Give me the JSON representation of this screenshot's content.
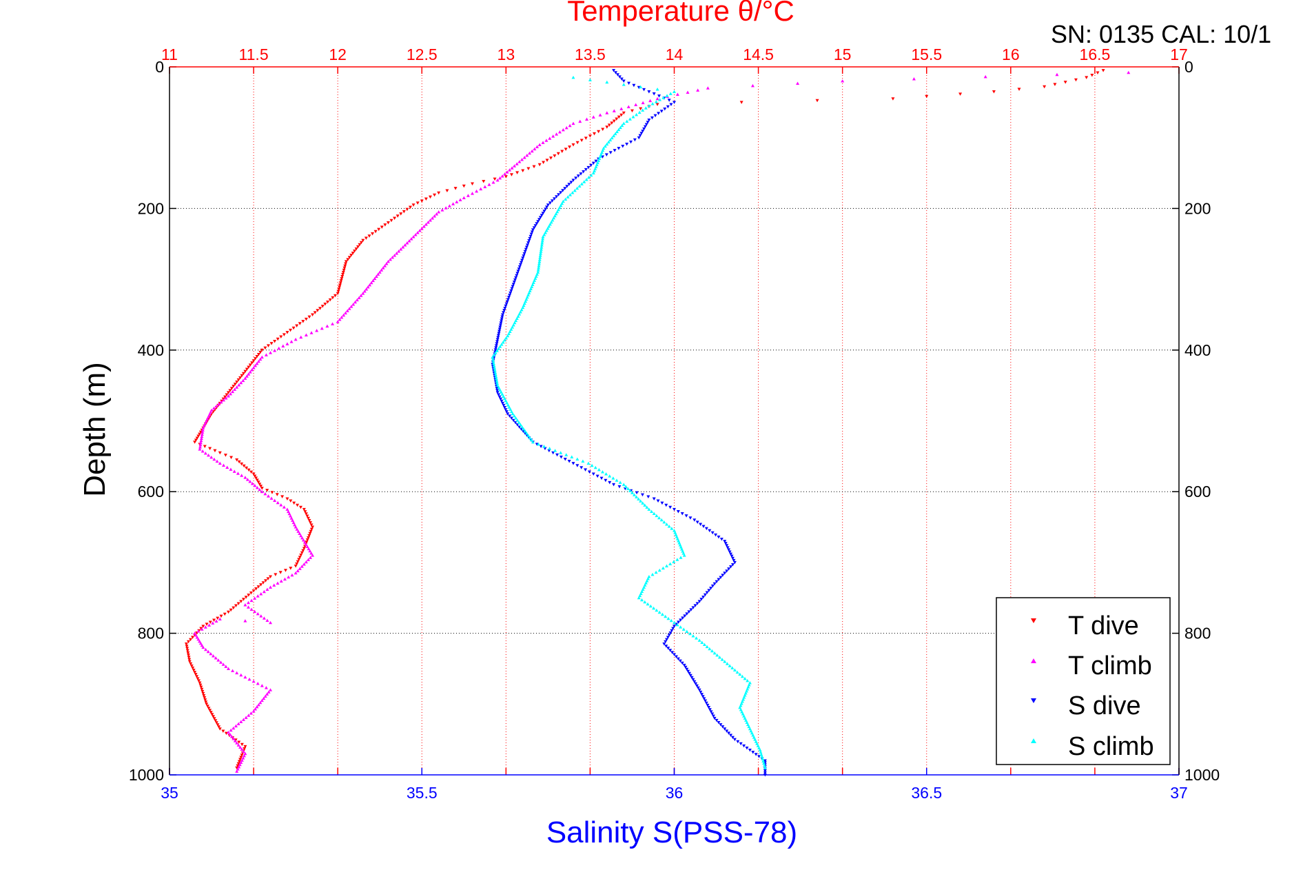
{
  "header": {
    "sn_label": "SN: 0135  CAL: 10/1"
  },
  "chart_data": {
    "type": "scatter",
    "title_top_axis": "Temperature θ/°C",
    "xlabel": "Salinity S(PSS-78)",
    "ylabel": "Depth (m)",
    "temperature_axis": {
      "range": [
        11,
        17
      ],
      "ticks": [
        "11",
        "11.5",
        "12",
        "12.5",
        "13",
        "13.5",
        "14",
        "14.5",
        "15",
        "15.5",
        "16",
        "16.5",
        "17"
      ],
      "color": "#ff0000"
    },
    "salinity_axis": {
      "range": [
        35,
        37
      ],
      "ticks": [
        "35",
        "35.5",
        "36",
        "36.5",
        "37"
      ],
      "color": "#0000ff"
    },
    "depth_axis": {
      "range": [
        0,
        1000
      ],
      "reversed": true,
      "ticks": [
        "0",
        "200",
        "400",
        "600",
        "800",
        "1000"
      ]
    },
    "grid": true,
    "legend_position": "bottom-right",
    "series": [
      {
        "name": "T dive",
        "axis": "temperature",
        "color": "#ff0000",
        "marker": "triangle-down",
        "points": [
          [
            16.55,
            5
          ],
          [
            16.45,
            15
          ],
          [
            16.2,
            28
          ],
          [
            15.9,
            35
          ],
          [
            15.3,
            45
          ],
          [
            14.4,
            50
          ],
          [
            13.9,
            53
          ],
          [
            13.7,
            65
          ],
          [
            13.6,
            85
          ],
          [
            13.4,
            110
          ],
          [
            13.2,
            138
          ],
          [
            13.0,
            155
          ],
          [
            12.8,
            165
          ],
          [
            12.6,
            178
          ],
          [
            12.45,
            195
          ],
          [
            12.3,
            220
          ],
          [
            12.15,
            245
          ],
          [
            12.05,
            275
          ],
          [
            12.0,
            320
          ],
          [
            11.85,
            350
          ],
          [
            11.7,
            375
          ],
          [
            11.55,
            400
          ],
          [
            11.45,
            430
          ],
          [
            11.35,
            460
          ],
          [
            11.25,
            490
          ],
          [
            11.2,
            510
          ],
          [
            11.15,
            530
          ],
          [
            11.3,
            545
          ],
          [
            11.4,
            555
          ],
          [
            11.5,
            575
          ],
          [
            11.55,
            595
          ],
          [
            11.7,
            610
          ],
          [
            11.8,
            625
          ],
          [
            11.85,
            650
          ],
          [
            11.8,
            680
          ],
          [
            11.75,
            705
          ],
          [
            11.6,
            720
          ],
          [
            11.5,
            740
          ],
          [
            11.35,
            770
          ],
          [
            11.2,
            790
          ],
          [
            11.1,
            815
          ],
          [
            11.12,
            840
          ],
          [
            11.18,
            870
          ],
          [
            11.22,
            900
          ],
          [
            11.3,
            935
          ],
          [
            11.45,
            960
          ],
          [
            11.4,
            990
          ]
        ]
      },
      {
        "name": "T climb",
        "axis": "temperature",
        "color": "#ff00ff",
        "marker": "triangle-up",
        "points": [
          [
            16.7,
            8
          ],
          [
            15.0,
            20
          ],
          [
            14.2,
            30
          ],
          [
            13.9,
            45
          ],
          [
            13.6,
            65
          ],
          [
            13.4,
            80
          ],
          [
            13.2,
            110
          ],
          [
            13.05,
            140
          ],
          [
            12.95,
            160
          ],
          [
            12.75,
            185
          ],
          [
            12.6,
            205
          ],
          [
            12.45,
            240
          ],
          [
            12.3,
            275
          ],
          [
            12.15,
            320
          ],
          [
            12.0,
            360
          ],
          [
            11.75,
            385
          ],
          [
            11.55,
            410
          ],
          [
            11.45,
            440
          ],
          [
            11.35,
            465
          ],
          [
            11.25,
            485
          ],
          [
            11.2,
            510
          ],
          [
            11.18,
            540
          ],
          [
            11.3,
            560
          ],
          [
            11.45,
            580
          ],
          [
            11.55,
            600
          ],
          [
            11.7,
            625
          ],
          [
            11.75,
            650
          ],
          [
            11.85,
            690
          ],
          [
            11.75,
            715
          ],
          [
            11.6,
            735
          ],
          [
            11.45,
            760
          ],
          [
            11.6,
            785
          ],
          [
            11.3,
            780
          ],
          [
            11.15,
            800
          ],
          [
            11.2,
            820
          ],
          [
            11.35,
            850
          ],
          [
            11.6,
            880
          ],
          [
            11.5,
            910
          ],
          [
            11.35,
            940
          ],
          [
            11.45,
            970
          ],
          [
            11.4,
            995
          ]
        ]
      },
      {
        "name": "S dive",
        "axis": "salinity",
        "color": "#0000ff",
        "marker": "triangle-down",
        "points": [
          [
            35.88,
            5
          ],
          [
            35.9,
            20
          ],
          [
            35.95,
            35
          ],
          [
            36.0,
            50
          ],
          [
            35.95,
            75
          ],
          [
            35.93,
            100
          ],
          [
            35.85,
            130
          ],
          [
            35.8,
            160
          ],
          [
            35.75,
            195
          ],
          [
            35.72,
            230
          ],
          [
            35.7,
            270
          ],
          [
            35.68,
            310
          ],
          [
            35.66,
            350
          ],
          [
            35.65,
            385
          ],
          [
            35.64,
            420
          ],
          [
            35.65,
            460
          ],
          [
            35.67,
            490
          ],
          [
            35.72,
            530
          ],
          [
            35.8,
            560
          ],
          [
            35.88,
            590
          ],
          [
            35.96,
            610
          ],
          [
            36.04,
            640
          ],
          [
            36.1,
            670
          ],
          [
            36.12,
            700
          ],
          [
            36.08,
            730
          ],
          [
            36.05,
            755
          ],
          [
            36.0,
            790
          ],
          [
            35.98,
            815
          ],
          [
            36.02,
            845
          ],
          [
            36.05,
            880
          ],
          [
            36.08,
            920
          ],
          [
            36.12,
            950
          ],
          [
            36.18,
            980
          ],
          [
            36.18,
            1000
          ]
        ]
      },
      {
        "name": "S climb",
        "axis": "salinity",
        "color": "#00ffff",
        "marker": "triangle-up",
        "points": [
          [
            35.8,
            15
          ],
          [
            35.9,
            25
          ],
          [
            36.0,
            35
          ],
          [
            35.95,
            55
          ],
          [
            35.9,
            80
          ],
          [
            35.86,
            115
          ],
          [
            35.84,
            150
          ],
          [
            35.78,
            190
          ],
          [
            35.74,
            240
          ],
          [
            35.73,
            290
          ],
          [
            35.7,
            340
          ],
          [
            35.67,
            380
          ],
          [
            35.64,
            410
          ],
          [
            35.65,
            450
          ],
          [
            35.68,
            490
          ],
          [
            35.72,
            530
          ],
          [
            35.83,
            560
          ],
          [
            35.9,
            590
          ],
          [
            35.95,
            625
          ],
          [
            36.0,
            655
          ],
          [
            36.02,
            690
          ],
          [
            35.95,
            720
          ],
          [
            35.93,
            750
          ],
          [
            36.0,
            785
          ],
          [
            36.05,
            810
          ],
          [
            36.1,
            840
          ],
          [
            36.15,
            870
          ],
          [
            36.13,
            905
          ],
          [
            36.15,
            935
          ],
          [
            36.17,
            965
          ],
          [
            36.18,
            990
          ]
        ]
      }
    ]
  }
}
